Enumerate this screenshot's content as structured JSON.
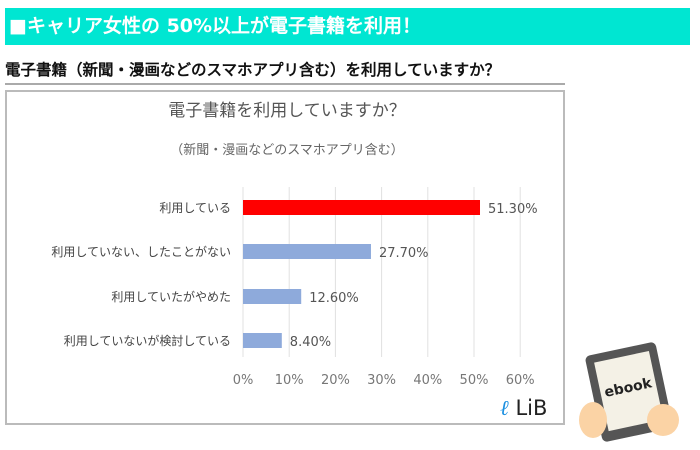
{
  "banner": "■キャリア女性の 50%以上が電子書籍を利用！",
  "question": "電子書籍（新聞・漫画などのスマホアプリ含む）を利用していますか？",
  "chart_data": {
    "type": "bar",
    "orientation": "horizontal",
    "title": "電子書籍を利用していますか？",
    "subtitle": "（新聞・漫画などのスマホアプリ含む）",
    "categories": [
      "利用している",
      "利用していない、したことがない",
      "利用していたがやめた",
      "利用していないが検討している"
    ],
    "values": [
      51.3,
      27.7,
      12.6,
      8.4
    ],
    "data_labels": [
      "51.30%",
      "27.70%",
      "12.60%",
      "8.40%"
    ],
    "colors": [
      "#ff0000",
      "#8eaadb",
      "#8eaadb",
      "#8eaadb"
    ],
    "xlim": [
      0,
      60
    ],
    "ticks": [
      "0%",
      "10%",
      "20%",
      "30%",
      "40%",
      "50%",
      "60%"
    ],
    "grid": true
  },
  "logo": {
    "mark": "ℓ",
    "text": "LiB"
  },
  "illustration": {
    "text": "ebook"
  }
}
